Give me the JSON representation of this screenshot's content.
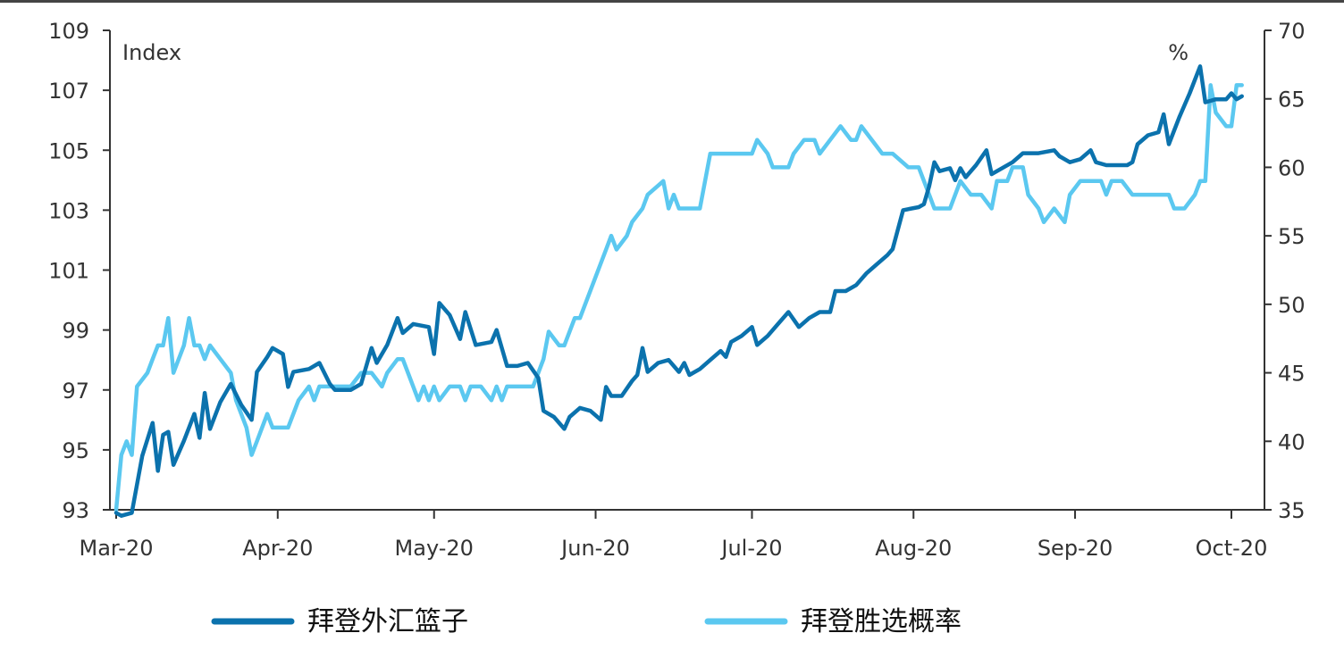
{
  "chart_data": {
    "type": "line",
    "y_left": {
      "label": "Index",
      "ylim": [
        93,
        109
      ],
      "ticks": [
        93,
        95,
        97,
        99,
        101,
        103,
        105,
        107,
        109
      ]
    },
    "y_right": {
      "label": "%",
      "ylim": [
        35,
        70
      ],
      "ticks": [
        35,
        40,
        45,
        50,
        55,
        60,
        65,
        70
      ]
    },
    "x_tick_labels": [
      "Mar-20",
      "Apr-20",
      "May-20",
      "Jun-20",
      "Jul-20",
      "Aug-20",
      "Sep-20",
      "Oct-20"
    ],
    "grid": false,
    "legend_position": "bottom",
    "series": [
      {
        "name": "拜登外汇篮子",
        "axis": "left",
        "color": "#0b72ad",
        "points": [
          [
            "2020-03-01",
            92.9
          ],
          [
            "2020-03-02",
            92.8
          ],
          [
            "2020-03-04",
            92.9
          ],
          [
            "2020-03-06",
            94.8
          ],
          [
            "2020-03-08",
            95.9
          ],
          [
            "2020-03-09",
            94.3
          ],
          [
            "2020-03-10",
            95.5
          ],
          [
            "2020-03-11",
            95.6
          ],
          [
            "2020-03-12",
            94.5
          ],
          [
            "2020-03-14",
            95.3
          ],
          [
            "2020-03-16",
            96.2
          ],
          [
            "2020-03-17",
            95.4
          ],
          [
            "2020-03-18",
            96.9
          ],
          [
            "2020-03-19",
            95.7
          ],
          [
            "2020-03-21",
            96.6
          ],
          [
            "2020-03-23",
            97.2
          ],
          [
            "2020-03-25",
            96.5
          ],
          [
            "2020-03-27",
            96.0
          ],
          [
            "2020-03-28",
            97.6
          ],
          [
            "2020-03-30",
            98.1
          ],
          [
            "2020-03-31",
            98.4
          ],
          [
            "2020-04-02",
            98.2
          ],
          [
            "2020-04-03",
            97.1
          ],
          [
            "2020-04-04",
            97.6
          ],
          [
            "2020-04-07",
            97.7
          ],
          [
            "2020-04-09",
            97.9
          ],
          [
            "2020-04-11",
            97.2
          ],
          [
            "2020-04-12",
            97.0
          ],
          [
            "2020-04-15",
            97.0
          ],
          [
            "2020-04-17",
            97.2
          ],
          [
            "2020-04-19",
            98.4
          ],
          [
            "2020-04-20",
            97.9
          ],
          [
            "2020-04-22",
            98.5
          ],
          [
            "2020-04-24",
            99.4
          ],
          [
            "2020-04-25",
            98.9
          ],
          [
            "2020-04-27",
            99.2
          ],
          [
            "2020-04-30",
            99.1
          ],
          [
            "2020-05-01",
            98.2
          ],
          [
            "2020-05-02",
            99.9
          ],
          [
            "2020-05-04",
            99.5
          ],
          [
            "2020-05-06",
            98.7
          ],
          [
            "2020-05-07",
            99.6
          ],
          [
            "2020-05-09",
            98.5
          ],
          [
            "2020-05-12",
            98.6
          ],
          [
            "2020-05-13",
            99.0
          ],
          [
            "2020-05-15",
            97.8
          ],
          [
            "2020-05-17",
            97.8
          ],
          [
            "2020-05-19",
            97.9
          ],
          [
            "2020-05-21",
            97.4
          ],
          [
            "2020-05-22",
            96.3
          ],
          [
            "2020-05-24",
            96.1
          ],
          [
            "2020-05-26",
            95.7
          ],
          [
            "2020-05-27",
            96.1
          ],
          [
            "2020-05-29",
            96.4
          ],
          [
            "2020-05-31",
            96.3
          ],
          [
            "2020-06-02",
            96.0
          ],
          [
            "2020-06-03",
            97.1
          ],
          [
            "2020-06-04",
            96.8
          ],
          [
            "2020-06-06",
            96.8
          ],
          [
            "2020-06-08",
            97.3
          ],
          [
            "2020-06-09",
            97.5
          ],
          [
            "2020-06-10",
            98.4
          ],
          [
            "2020-06-11",
            97.6
          ],
          [
            "2020-06-13",
            97.9
          ],
          [
            "2020-06-15",
            98.0
          ],
          [
            "2020-06-17",
            97.6
          ],
          [
            "2020-06-18",
            97.9
          ],
          [
            "2020-06-19",
            97.5
          ],
          [
            "2020-06-21",
            97.7
          ],
          [
            "2020-06-23",
            98.0
          ],
          [
            "2020-06-25",
            98.3
          ],
          [
            "2020-06-26",
            98.1
          ],
          [
            "2020-06-27",
            98.6
          ],
          [
            "2020-06-29",
            98.8
          ],
          [
            "2020-07-01",
            99.1
          ],
          [
            "2020-07-02",
            98.5
          ],
          [
            "2020-07-04",
            98.8
          ],
          [
            "2020-07-06",
            99.2
          ],
          [
            "2020-07-08",
            99.6
          ],
          [
            "2020-07-10",
            99.1
          ],
          [
            "2020-07-12",
            99.4
          ],
          [
            "2020-07-14",
            99.6
          ],
          [
            "2020-07-16",
            99.6
          ],
          [
            "2020-07-17",
            100.3
          ],
          [
            "2020-07-19",
            100.3
          ],
          [
            "2020-07-21",
            100.5
          ],
          [
            "2020-07-23",
            100.9
          ],
          [
            "2020-07-25",
            101.2
          ],
          [
            "2020-07-27",
            101.5
          ],
          [
            "2020-07-28",
            101.7
          ],
          [
            "2020-07-30",
            103.0
          ],
          [
            "2020-08-02",
            103.1
          ],
          [
            "2020-08-03",
            103.2
          ],
          [
            "2020-08-04",
            103.8
          ],
          [
            "2020-08-05",
            104.6
          ],
          [
            "2020-08-06",
            104.3
          ],
          [
            "2020-08-08",
            104.4
          ],
          [
            "2020-08-09",
            104.0
          ],
          [
            "2020-08-10",
            104.4
          ],
          [
            "2020-08-11",
            104.1
          ],
          [
            "2020-08-13",
            104.5
          ],
          [
            "2020-08-15",
            105.0
          ],
          [
            "2020-08-16",
            104.2
          ],
          [
            "2020-08-17",
            104.3
          ],
          [
            "2020-08-20",
            104.6
          ],
          [
            "2020-08-22",
            104.9
          ],
          [
            "2020-08-25",
            104.9
          ],
          [
            "2020-08-28",
            105.0
          ],
          [
            "2020-08-29",
            104.8
          ],
          [
            "2020-08-31",
            104.6
          ],
          [
            "2020-09-02",
            104.7
          ],
          [
            "2020-09-04",
            105.0
          ],
          [
            "2020-09-05",
            104.6
          ],
          [
            "2020-09-07",
            104.5
          ],
          [
            "2020-09-09",
            104.5
          ],
          [
            "2020-09-11",
            104.5
          ],
          [
            "2020-09-12",
            104.6
          ],
          [
            "2020-09-13",
            105.2
          ],
          [
            "2020-09-15",
            105.5
          ],
          [
            "2020-09-17",
            105.6
          ],
          [
            "2020-09-18",
            106.2
          ],
          [
            "2020-09-19",
            105.2
          ],
          [
            "2020-09-21",
            106.1
          ],
          [
            "2020-09-23",
            106.9
          ],
          [
            "2020-09-25",
            107.8
          ],
          [
            "2020-09-26",
            106.6
          ],
          [
            "2020-09-28",
            106.7
          ],
          [
            "2020-09-30",
            106.7
          ],
          [
            "2020-10-01",
            106.9
          ],
          [
            "2020-10-02",
            106.7
          ],
          [
            "2020-10-03",
            106.8
          ]
        ]
      },
      {
        "name": "拜登胜选概率",
        "axis": "right",
        "color": "#5bc8f0",
        "points": [
          [
            "2020-03-01",
            35
          ],
          [
            "2020-03-02",
            39
          ],
          [
            "2020-03-03",
            40
          ],
          [
            "2020-03-04",
            39
          ],
          [
            "2020-03-05",
            44
          ],
          [
            "2020-03-07",
            45
          ],
          [
            "2020-03-08",
            46
          ],
          [
            "2020-03-09",
            47
          ],
          [
            "2020-03-10",
            47
          ],
          [
            "2020-03-11",
            49
          ],
          [
            "2020-03-12",
            45
          ],
          [
            "2020-03-14",
            47
          ],
          [
            "2020-03-15",
            49
          ],
          [
            "2020-03-16",
            47
          ],
          [
            "2020-03-17",
            47
          ],
          [
            "2020-03-18",
            46
          ],
          [
            "2020-03-19",
            47
          ],
          [
            "2020-03-21",
            46
          ],
          [
            "2020-03-23",
            45
          ],
          [
            "2020-03-24",
            43
          ],
          [
            "2020-03-26",
            41
          ],
          [
            "2020-03-27",
            39
          ],
          [
            "2020-03-28",
            40
          ],
          [
            "2020-03-30",
            42
          ],
          [
            "2020-03-31",
            41
          ],
          [
            "2020-04-03",
            41
          ],
          [
            "2020-04-05",
            43
          ],
          [
            "2020-04-07",
            44
          ],
          [
            "2020-04-08",
            43
          ],
          [
            "2020-04-09",
            44
          ],
          [
            "2020-04-12",
            44
          ],
          [
            "2020-04-15",
            44
          ],
          [
            "2020-04-17",
            45
          ],
          [
            "2020-04-19",
            45
          ],
          [
            "2020-04-21",
            44
          ],
          [
            "2020-04-22",
            45
          ],
          [
            "2020-04-24",
            46
          ],
          [
            "2020-04-25",
            46
          ],
          [
            "2020-04-27",
            44
          ],
          [
            "2020-04-28",
            43
          ],
          [
            "2020-04-29",
            44
          ],
          [
            "2020-04-30",
            43
          ],
          [
            "2020-05-01",
            44
          ],
          [
            "2020-05-02",
            43
          ],
          [
            "2020-05-04",
            44
          ],
          [
            "2020-05-06",
            44
          ],
          [
            "2020-05-07",
            43
          ],
          [
            "2020-05-08",
            44
          ],
          [
            "2020-05-10",
            44
          ],
          [
            "2020-05-12",
            43
          ],
          [
            "2020-05-13",
            44
          ],
          [
            "2020-05-14",
            43
          ],
          [
            "2020-05-15",
            44
          ],
          [
            "2020-05-18",
            44
          ],
          [
            "2020-05-20",
            44
          ],
          [
            "2020-05-21",
            45
          ],
          [
            "2020-05-22",
            46
          ],
          [
            "2020-05-23",
            48
          ],
          [
            "2020-05-25",
            47
          ],
          [
            "2020-05-26",
            47
          ],
          [
            "2020-05-28",
            49
          ],
          [
            "2020-05-29",
            49
          ],
          [
            "2020-06-01",
            52
          ],
          [
            "2020-06-03",
            54
          ],
          [
            "2020-06-04",
            55
          ],
          [
            "2020-06-05",
            54
          ],
          [
            "2020-06-07",
            55
          ],
          [
            "2020-06-08",
            56
          ],
          [
            "2020-06-10",
            57
          ],
          [
            "2020-06-11",
            58
          ],
          [
            "2020-06-14",
            59
          ],
          [
            "2020-06-15",
            57
          ],
          [
            "2020-06-16",
            58
          ],
          [
            "2020-06-17",
            57
          ],
          [
            "2020-06-19",
            57
          ],
          [
            "2020-06-21",
            57
          ],
          [
            "2020-06-23",
            61
          ],
          [
            "2020-06-26",
            61
          ],
          [
            "2020-06-29",
            61
          ],
          [
            "2020-07-01",
            61
          ],
          [
            "2020-07-02",
            62
          ],
          [
            "2020-07-04",
            61
          ],
          [
            "2020-07-05",
            60
          ],
          [
            "2020-07-08",
            60
          ],
          [
            "2020-07-09",
            61
          ],
          [
            "2020-07-11",
            62
          ],
          [
            "2020-07-13",
            62
          ],
          [
            "2020-07-14",
            61
          ],
          [
            "2020-07-16",
            62
          ],
          [
            "2020-07-18",
            63
          ],
          [
            "2020-07-20",
            62
          ],
          [
            "2020-07-21",
            62
          ],
          [
            "2020-07-22",
            63
          ],
          [
            "2020-07-24",
            62
          ],
          [
            "2020-07-26",
            61
          ],
          [
            "2020-07-28",
            61
          ],
          [
            "2020-07-31",
            60
          ],
          [
            "2020-08-02",
            60
          ],
          [
            "2020-08-04",
            58
          ],
          [
            "2020-08-05",
            57
          ],
          [
            "2020-08-06",
            57
          ],
          [
            "2020-08-08",
            57
          ],
          [
            "2020-08-10",
            59
          ],
          [
            "2020-08-12",
            58
          ],
          [
            "2020-08-14",
            58
          ],
          [
            "2020-08-16",
            57
          ],
          [
            "2020-08-17",
            59
          ],
          [
            "2020-08-19",
            59
          ],
          [
            "2020-08-20",
            60
          ],
          [
            "2020-08-22",
            60
          ],
          [
            "2020-08-23",
            58
          ],
          [
            "2020-08-25",
            57
          ],
          [
            "2020-08-26",
            56
          ],
          [
            "2020-08-28",
            57
          ],
          [
            "2020-08-30",
            56
          ],
          [
            "2020-08-31",
            58
          ],
          [
            "2020-09-02",
            59
          ],
          [
            "2020-09-04",
            59
          ],
          [
            "2020-09-06",
            59
          ],
          [
            "2020-09-07",
            58
          ],
          [
            "2020-09-08",
            59
          ],
          [
            "2020-09-10",
            59
          ],
          [
            "2020-09-12",
            58
          ],
          [
            "2020-09-15",
            58
          ],
          [
            "2020-09-17",
            58
          ],
          [
            "2020-09-19",
            58
          ],
          [
            "2020-09-20",
            57
          ],
          [
            "2020-09-22",
            57
          ],
          [
            "2020-09-24",
            58
          ],
          [
            "2020-09-25",
            59
          ],
          [
            "2020-09-26",
            59
          ],
          [
            "2020-09-27",
            66
          ],
          [
            "2020-09-28",
            64
          ],
          [
            "2020-09-30",
            63
          ],
          [
            "2020-10-01",
            63
          ],
          [
            "2020-10-02",
            66
          ],
          [
            "2020-10-03",
            66
          ]
        ]
      }
    ]
  }
}
